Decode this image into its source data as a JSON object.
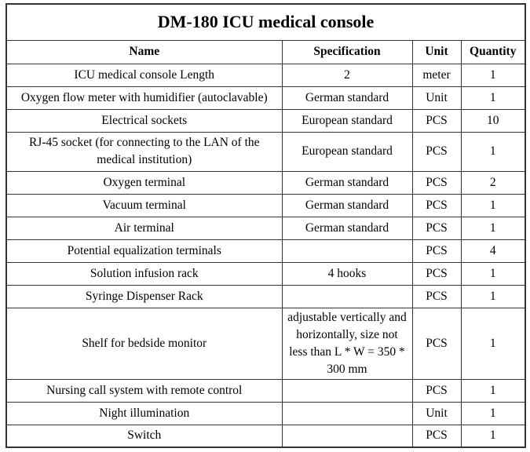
{
  "title": "DM-180 ICU medical console",
  "headers": {
    "name": "Name",
    "specification": "Specification",
    "unit": "Unit",
    "quantity": "Quantity"
  },
  "rows": [
    {
      "name": "ICU medical console Length",
      "specification": "2",
      "unit": "meter",
      "quantity": "1"
    },
    {
      "name": "Oxygen flow meter with humidifier (autoclavable)",
      "specification": "German standard",
      "unit": "Unit",
      "quantity": "1"
    },
    {
      "name": "Electrical sockets",
      "specification": "European standard",
      "unit": "PCS",
      "quantity": "10"
    },
    {
      "name": "RJ-45 socket (for connecting to the LAN of the medical institution)",
      "specification": "European standard",
      "unit": "PCS",
      "quantity": "1"
    },
    {
      "name": "Oxygen terminal",
      "specification": "German standard",
      "unit": "PCS",
      "quantity": "2"
    },
    {
      "name": "Vacuum terminal",
      "specification": "German standard",
      "unit": "PCS",
      "quantity": "1"
    },
    {
      "name": "Air terminal",
      "specification": "German standard",
      "unit": "PCS",
      "quantity": "1"
    },
    {
      "name": "Potential equalization terminals",
      "specification": "",
      "unit": "PCS",
      "quantity": "4"
    },
    {
      "name": "Solution infusion rack",
      "specification": "4 hooks",
      "unit": "PCS",
      "quantity": "1"
    },
    {
      "name": "Syringe Dispenser Rack",
      "specification": "",
      "unit": "PCS",
      "quantity": "1"
    },
    {
      "name": "Shelf for bedside monitor",
      "specification": "adjustable vertically and horizontally, size not less than L * W = 350 * 300 mm",
      "unit": "PCS",
      "quantity": "1"
    },
    {
      "name": "Nursing call system with remote control",
      "specification": "",
      "unit": "PCS",
      "quantity": "1"
    },
    {
      "name": "Night illumination",
      "specification": "",
      "unit": "Unit",
      "quantity": "1"
    },
    {
      "name": "Switch",
      "specification": "",
      "unit": "PCS",
      "quantity": "1"
    }
  ],
  "colors": {
    "border": "#333333",
    "text": "#000000",
    "background": "#ffffff"
  }
}
